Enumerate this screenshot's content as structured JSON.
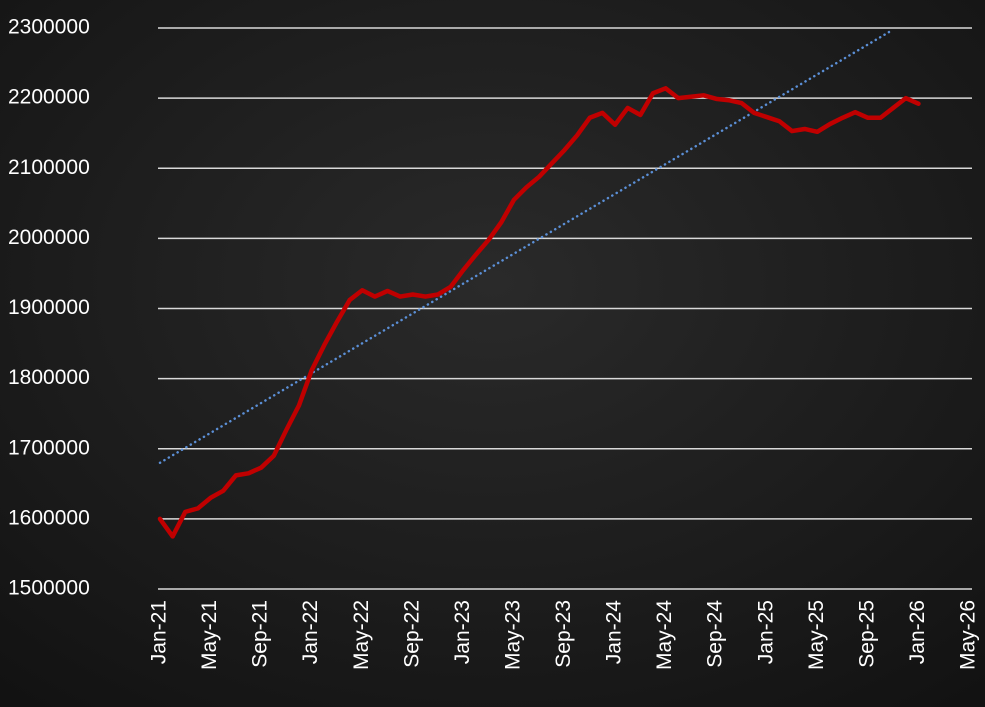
{
  "chart_data": {
    "type": "line",
    "categories": [
      "Jan-21",
      null,
      null,
      null,
      "May-21",
      null,
      null,
      null,
      "Sep-21",
      null,
      null,
      null,
      "Jan-22",
      null,
      null,
      null,
      "May-22",
      null,
      null,
      null,
      "Sep-22",
      null,
      null,
      null,
      "Jan-23",
      null,
      null,
      null,
      "May-23",
      null,
      null,
      null,
      "Sep-23",
      null,
      null,
      null,
      "Jan-24",
      null,
      null,
      null,
      "May-24",
      null,
      null,
      null,
      "Sep-24",
      null,
      null,
      null,
      "Jan-25",
      null,
      null,
      null,
      "May-25",
      null,
      null,
      null,
      "Sep-25",
      null,
      null,
      null,
      "Jan-26",
      null,
      null,
      null,
      "May-26"
    ],
    "series": [
      {
        "color": "#c00000",
        "style": "solid",
        "values": [
          1600000,
          1575000,
          1610000,
          1615000,
          1630000,
          1640000,
          1662000,
          1665000,
          1673000,
          1690000,
          1727000,
          1762000,
          1812000,
          1848000,
          1881000,
          1912000,
          1926000,
          1917000,
          1925000,
          1917000,
          1920000,
          1917000,
          1920000,
          1931000,
          1955000,
          1977000,
          1998000,
          2023000,
          2055000,
          2073000,
          2088000,
          2107000,
          2126000,
          2147000,
          2172000,
          2179000,
          2162000,
          2186000,
          2176000,
          2207000,
          2214000,
          2200000,
          2202000,
          2204000,
          2199000,
          2197000,
          2193000,
          2179000,
          2173000,
          2167000,
          2153000,
          2156000,
          2152000,
          2163000,
          2172000,
          2180000,
          2172000,
          2172000,
          2186000,
          2200000,
          2192000,
          null,
          null,
          null,
          null
        ]
      },
      {
        "color": "#5b8fd6",
        "style": "dotted",
        "values": [
          1680000,
          1690650,
          1701300,
          1711950,
          1722600,
          1733250,
          1743900,
          1754550,
          1765200,
          1775850,
          1786500,
          1797150,
          1807800,
          1818450,
          1829100,
          1839750,
          1850400,
          1861050,
          1871700,
          1882350,
          1893000,
          1903650,
          1914300,
          1924950,
          1935600,
          1946250,
          1956900,
          1967550,
          1978200,
          1988850,
          1999500,
          2010150,
          2020800,
          2031450,
          2042100,
          2052750,
          2063400,
          2074050,
          2084700,
          2095350,
          2106000,
          2116650,
          2127300,
          2137950,
          2148600,
          2159250,
          2169900,
          2180550,
          2191200,
          2201850,
          2212500,
          2223150,
          2233800,
          2244450,
          2255100,
          2265750,
          2276400,
          2287050,
          2297700,
          null,
          null,
          null,
          null,
          null,
          null
        ]
      }
    ],
    "ylim": [
      1500000,
      2300000
    ],
    "yticks": [
      1500000,
      1600000,
      1700000,
      1800000,
      1900000,
      2000000,
      2100000,
      2200000,
      2300000
    ],
    "grid": true
  }
}
